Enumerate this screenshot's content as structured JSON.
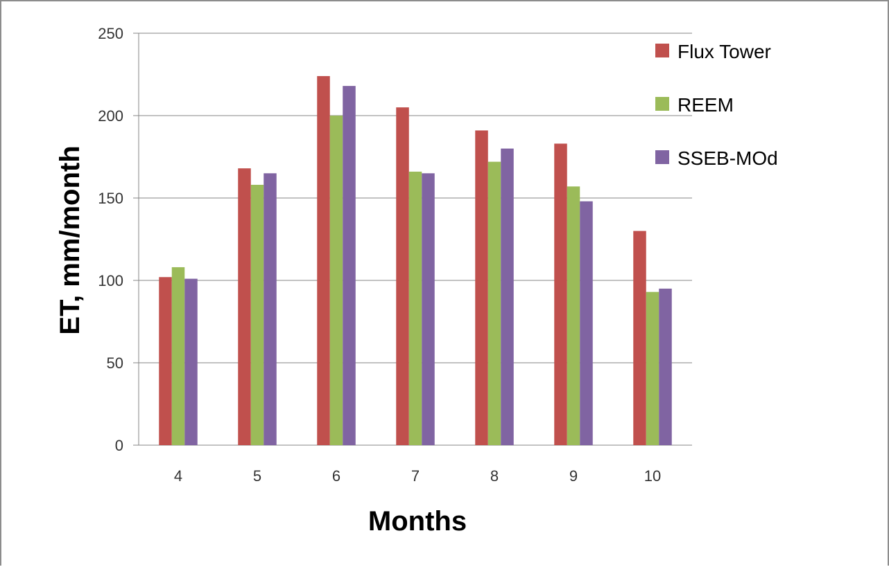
{
  "chart_data": {
    "type": "bar",
    "categories": [
      "4",
      "5",
      "6",
      "7",
      "8",
      "9",
      "10"
    ],
    "series": [
      {
        "name": "Flux Tower",
        "color": "#c0504d",
        "values": [
          102,
          168,
          224,
          205,
          191,
          183,
          130
        ]
      },
      {
        "name": "REEM",
        "color": "#9bbb59",
        "values": [
          108,
          158,
          200,
          166,
          172,
          157,
          93
        ]
      },
      {
        "name": "SSEB-MOd",
        "color": "#8064a2",
        "values": [
          101,
          165,
          218,
          165,
          180,
          148,
          95
        ]
      }
    ],
    "xlabel": "Months",
    "ylabel": "ET, mm/month",
    "ylim": [
      0,
      250
    ],
    "yticks": [
      0,
      50,
      100,
      150,
      200,
      250
    ],
    "grid": true,
    "legend_position": "right"
  }
}
